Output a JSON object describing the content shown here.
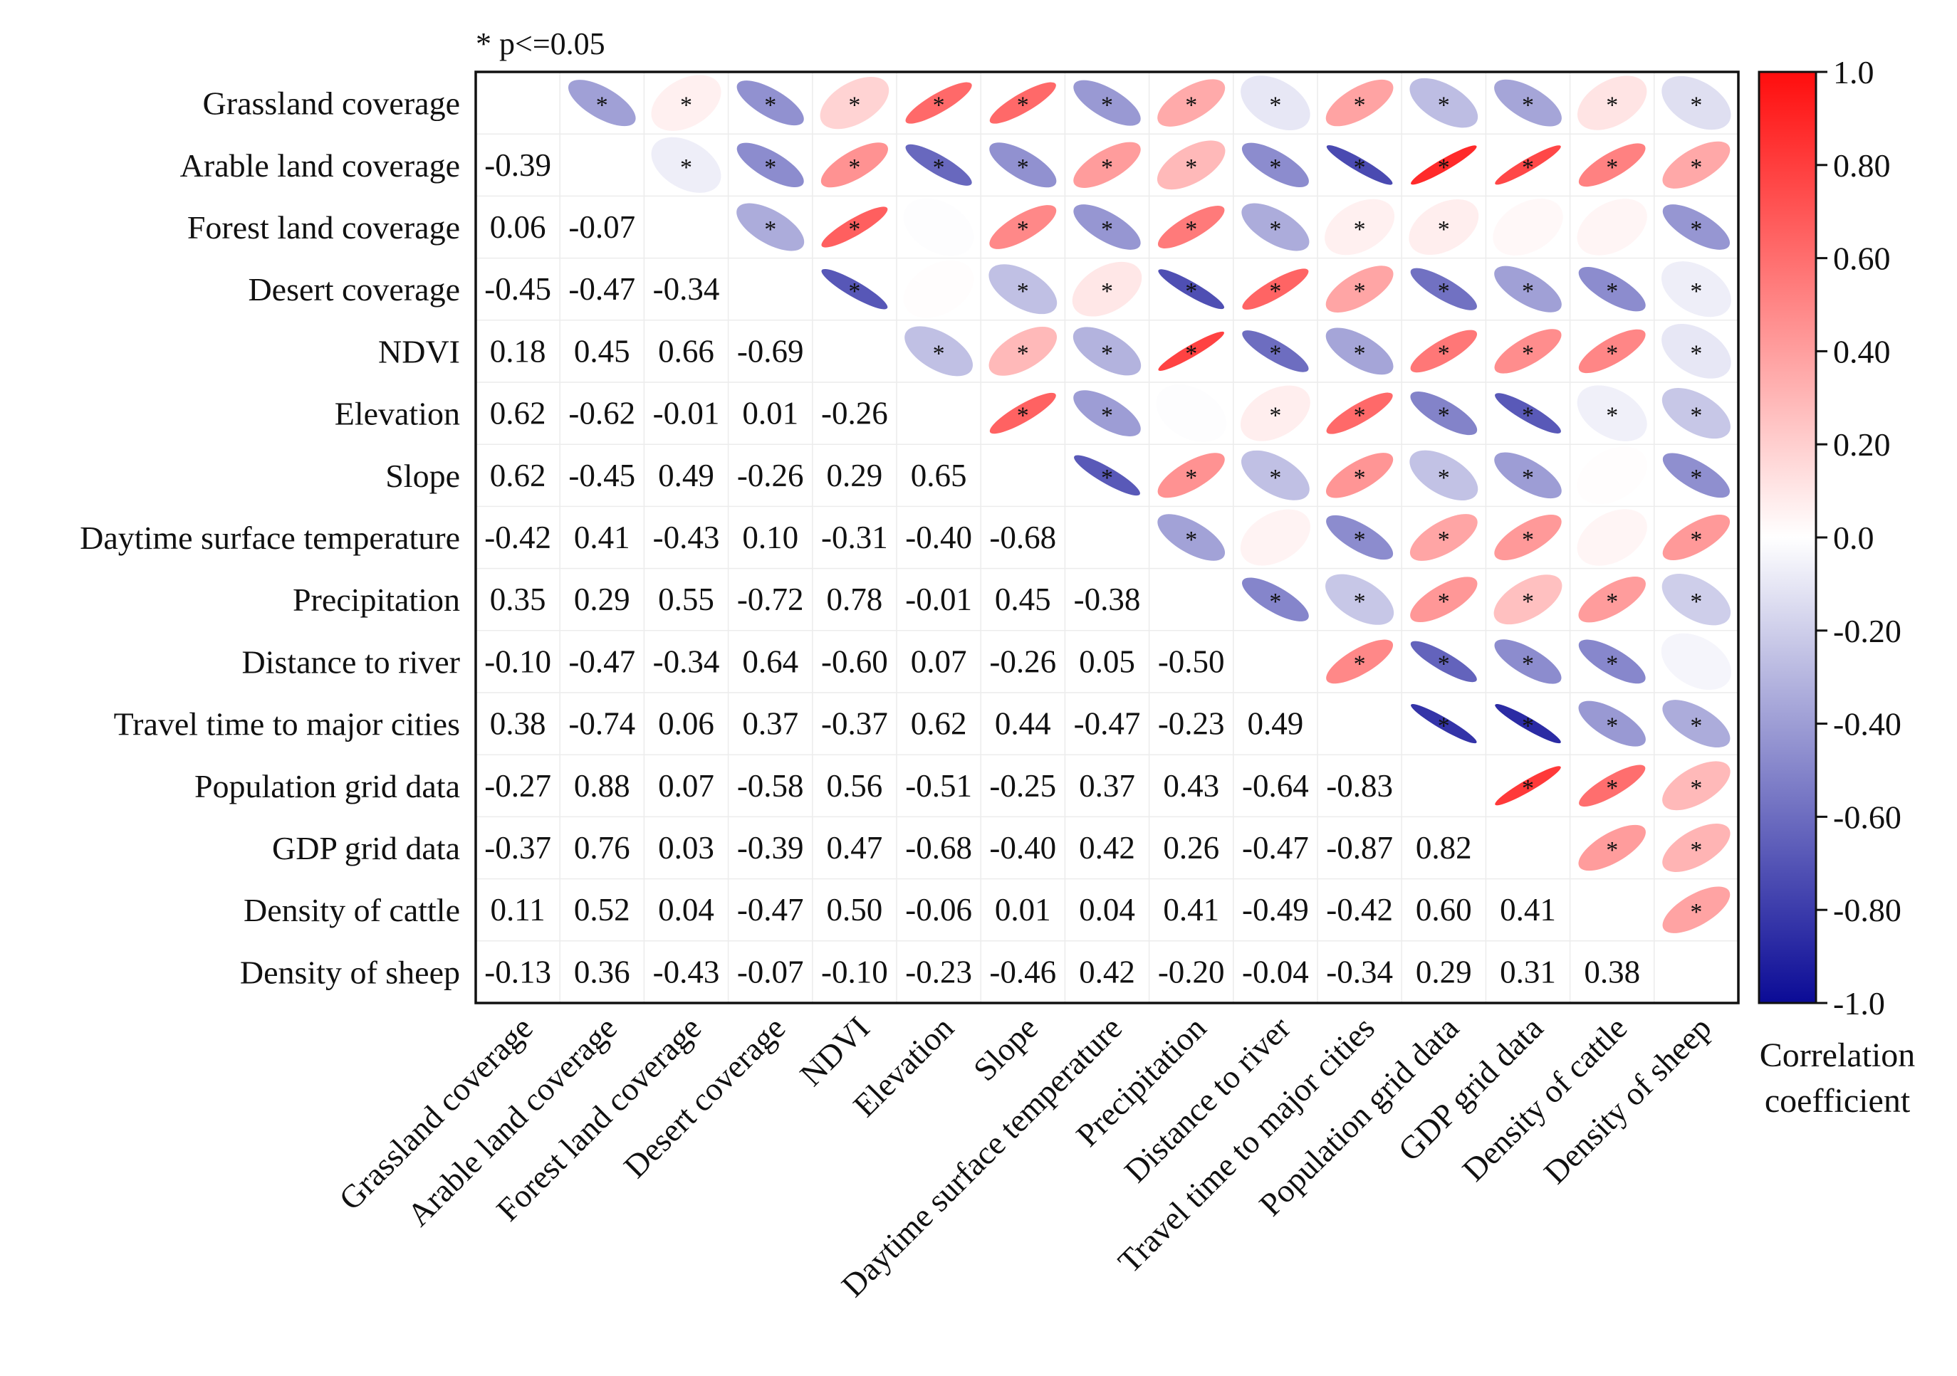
{
  "chart_data": {
    "type": "heatmap",
    "subtype": "correlation-matrix",
    "significance_note": "* p<=0.05",
    "variables": [
      "Grassland coverage",
      "Arable land coverage",
      "Forest land coverage",
      "Desert coverage",
      "NDVI",
      "Elevation",
      "Slope",
      "Daytime surface temperature",
      "Precipitation",
      "Distance to river",
      "Travel time to major cities",
      "Population grid data",
      "GDP grid data",
      "Density of cattle",
      "Density of sheep"
    ],
    "lower_triangle_labels": [
      [],
      [
        "-0.39"
      ],
      [
        "0.06",
        "-0.07"
      ],
      [
        "-0.45",
        "-0.47",
        "-0.34"
      ],
      [
        "0.18",
        "0.45",
        "0.66",
        "-0.69"
      ],
      [
        "0.62",
        "-0.62",
        "-0.01",
        "0.01",
        "-0.26"
      ],
      [
        "0.62",
        "-0.45",
        "0.49",
        "-0.26",
        "0.29",
        "0.65"
      ],
      [
        "-0.42",
        "0.41",
        "-0.43",
        "0.10",
        "-0.31",
        "-0.40",
        "-0.68"
      ],
      [
        "0.35",
        "0.29",
        "0.55",
        "-0.72",
        "0.78",
        "-0.01",
        "0.45",
        "-0.38"
      ],
      [
        "-0.10",
        "-0.47",
        "-0.34",
        "0.64",
        "-0.60",
        "0.07",
        "-0.26",
        "0.05",
        "-0.50"
      ],
      [
        "0.38",
        "-0.74",
        "0.06",
        "0.37",
        "-0.37",
        "0.62",
        "0.44",
        "-0.47",
        "-0.23",
        "0.49"
      ],
      [
        "-0.27",
        "0.88",
        "0.07",
        "-0.58",
        "0.56",
        "-0.51",
        "-0.25",
        "0.37",
        "0.43",
        "-0.64",
        "-0.83"
      ],
      [
        "-0.37",
        "0.76",
        "0.03",
        "-0.39",
        "0.47",
        "-0.68",
        "-0.40",
        "0.42",
        "0.26",
        "-0.47",
        "-0.87",
        "0.82"
      ],
      [
        "0.11",
        "0.52",
        "0.04",
        "-0.47",
        "0.50",
        "-0.06",
        "0.01",
        "0.04",
        "0.41",
        "-0.49",
        "-0.42",
        "0.60",
        "0.41"
      ],
      [
        "-0.13",
        "0.36",
        "-0.43",
        "-0.07",
        "-0.10",
        "-0.23",
        "-0.46",
        "0.42",
        "-0.20",
        "-0.04",
        "-0.34",
        "0.29",
        "0.31",
        "0.38"
      ]
    ],
    "significant_pairs": [
      [
        0,
        1
      ],
      [
        0,
        2
      ],
      [
        0,
        3
      ],
      [
        0,
        4
      ],
      [
        0,
        5
      ],
      [
        0,
        6
      ],
      [
        0,
        7
      ],
      [
        0,
        8
      ],
      [
        0,
        9
      ],
      [
        0,
        10
      ],
      [
        0,
        11
      ],
      [
        0,
        12
      ],
      [
        0,
        13
      ],
      [
        0,
        14
      ],
      [
        1,
        2
      ],
      [
        1,
        3
      ],
      [
        1,
        4
      ],
      [
        1,
        5
      ],
      [
        1,
        6
      ],
      [
        1,
        7
      ],
      [
        1,
        8
      ],
      [
        1,
        9
      ],
      [
        1,
        10
      ],
      [
        1,
        11
      ],
      [
        1,
        12
      ],
      [
        1,
        13
      ],
      [
        1,
        14
      ],
      [
        2,
        3
      ],
      [
        2,
        4
      ],
      [
        2,
        6
      ],
      [
        2,
        7
      ],
      [
        2,
        8
      ],
      [
        2,
        9
      ],
      [
        2,
        10
      ],
      [
        2,
        11
      ],
      [
        2,
        14
      ],
      [
        3,
        4
      ],
      [
        3,
        6
      ],
      [
        3,
        7
      ],
      [
        3,
        8
      ],
      [
        3,
        9
      ],
      [
        3,
        10
      ],
      [
        3,
        11
      ],
      [
        3,
        12
      ],
      [
        3,
        13
      ],
      [
        3,
        14
      ],
      [
        4,
        5
      ],
      [
        4,
        6
      ],
      [
        4,
        7
      ],
      [
        4,
        8
      ],
      [
        4,
        9
      ],
      [
        4,
        10
      ],
      [
        4,
        11
      ],
      [
        4,
        12
      ],
      [
        4,
        13
      ],
      [
        4,
        14
      ],
      [
        5,
        6
      ],
      [
        5,
        7
      ],
      [
        5,
        9
      ],
      [
        5,
        10
      ],
      [
        5,
        11
      ],
      [
        5,
        12
      ],
      [
        5,
        13
      ],
      [
        5,
        14
      ],
      [
        6,
        7
      ],
      [
        6,
        8
      ],
      [
        6,
        9
      ],
      [
        6,
        10
      ],
      [
        6,
        11
      ],
      [
        6,
        12
      ],
      [
        6,
        14
      ],
      [
        7,
        8
      ],
      [
        7,
        10
      ],
      [
        7,
        11
      ],
      [
        7,
        12
      ],
      [
        7,
        14
      ],
      [
        8,
        9
      ],
      [
        8,
        10
      ],
      [
        8,
        11
      ],
      [
        8,
        12
      ],
      [
        8,
        13
      ],
      [
        8,
        14
      ],
      [
        9,
        10
      ],
      [
        9,
        11
      ],
      [
        9,
        12
      ],
      [
        9,
        13
      ],
      [
        10,
        11
      ],
      [
        10,
        12
      ],
      [
        10,
        13
      ],
      [
        10,
        14
      ],
      [
        11,
        12
      ],
      [
        11,
        13
      ],
      [
        11,
        14
      ],
      [
        12,
        13
      ],
      [
        12,
        14
      ],
      [
        13,
        14
      ]
    ],
    "colorbar": {
      "title_line1": "Correlation",
      "title_line2": "coefficient",
      "range": [
        -1.0,
        1.0
      ],
      "tick_labels": [
        "1.0",
        "0.80",
        "0.60",
        "0.40",
        "0.20",
        "0.0",
        "-0.20",
        "-0.40",
        "-0.60",
        "-0.80",
        "-1.0"
      ],
      "colors": {
        "negative": "#0b0b96",
        "zero": "#ffffff",
        "positive": "#ff0d0d"
      }
    }
  }
}
